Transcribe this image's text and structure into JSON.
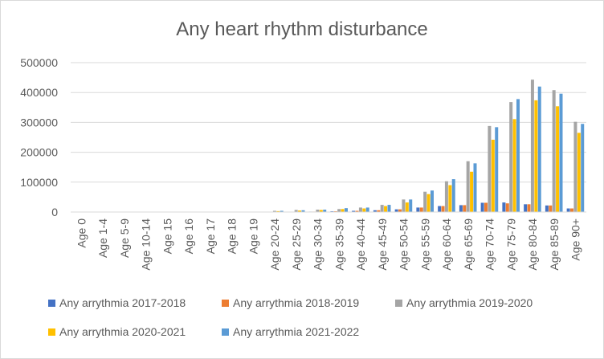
{
  "chart_data": {
    "type": "bar",
    "title": "Any heart rhythm disturbance",
    "xlabel": "",
    "ylabel": "",
    "ylim": [
      0,
      500000
    ],
    "yticks": [
      "0",
      "100000",
      "200000",
      "300000",
      "400000",
      "500000"
    ],
    "grid": true,
    "legend_position": "bottom",
    "categories": [
      "Age 0",
      "Age 1-4",
      "Age 5-9",
      "Age 10-14",
      "Age 15",
      "Age 16",
      "Age 17",
      "Age 18",
      "Age 19",
      "Age 20-24",
      "Age 25-29",
      "Age 30-34",
      "Age 35-39",
      "Age 40-44",
      "Age 45-49",
      "Age 50-54",
      "Age 55-59",
      "Age 60-64",
      "Age 65-69",
      "Age 70-74",
      "Age 75-79",
      "Age 80-84",
      "Age 85-89",
      "Age 90+"
    ],
    "series": [
      {
        "name": "Any arrythmia 2017-2018",
        "color": "#4472C4",
        "values": [
          0,
          0,
          0,
          0,
          0,
          0,
          0,
          0,
          0,
          500,
          1000,
          1500,
          2500,
          4000,
          6000,
          9000,
          15000,
          20000,
          23000,
          31000,
          32000,
          26000,
          22000,
          12000
        ]
      },
      {
        "name": "Any arrythmia 2018-2019",
        "color": "#ED7D31",
        "values": [
          0,
          0,
          0,
          0,
          0,
          0,
          0,
          0,
          0,
          500,
          1000,
          1500,
          2500,
          4000,
          6000,
          9000,
          15000,
          20000,
          23000,
          31000,
          29000,
          26000,
          22000,
          12000
        ]
      },
      {
        "name": "Any arrythmia 2019-2020",
        "color": "#A5A5A5",
        "values": [
          0,
          0,
          0,
          0,
          0,
          0,
          0,
          0,
          0,
          4000,
          7000,
          8000,
          10000,
          15000,
          24000,
          42000,
          68000,
          103000,
          170000,
          288000,
          368000,
          443000,
          408000,
          302000
        ]
      },
      {
        "name": "Any arrythmia 2020-2021",
        "color": "#FFC000",
        "values": [
          0,
          0,
          0,
          0,
          0,
          0,
          0,
          0,
          0,
          3000,
          5000,
          7000,
          10000,
          12000,
          20000,
          32000,
          60000,
          90000,
          135000,
          242000,
          311000,
          374000,
          354000,
          265000
        ]
      },
      {
        "name": "Any arrythmia 2021-2022",
        "color": "#5B9BD5",
        "values": [
          0,
          0,
          0,
          0,
          0,
          0,
          0,
          0,
          0,
          4000,
          6000,
          8000,
          13000,
          15000,
          24000,
          42000,
          72000,
          110000,
          163000,
          284000,
          378000,
          420000,
          396000,
          295000
        ]
      }
    ]
  }
}
